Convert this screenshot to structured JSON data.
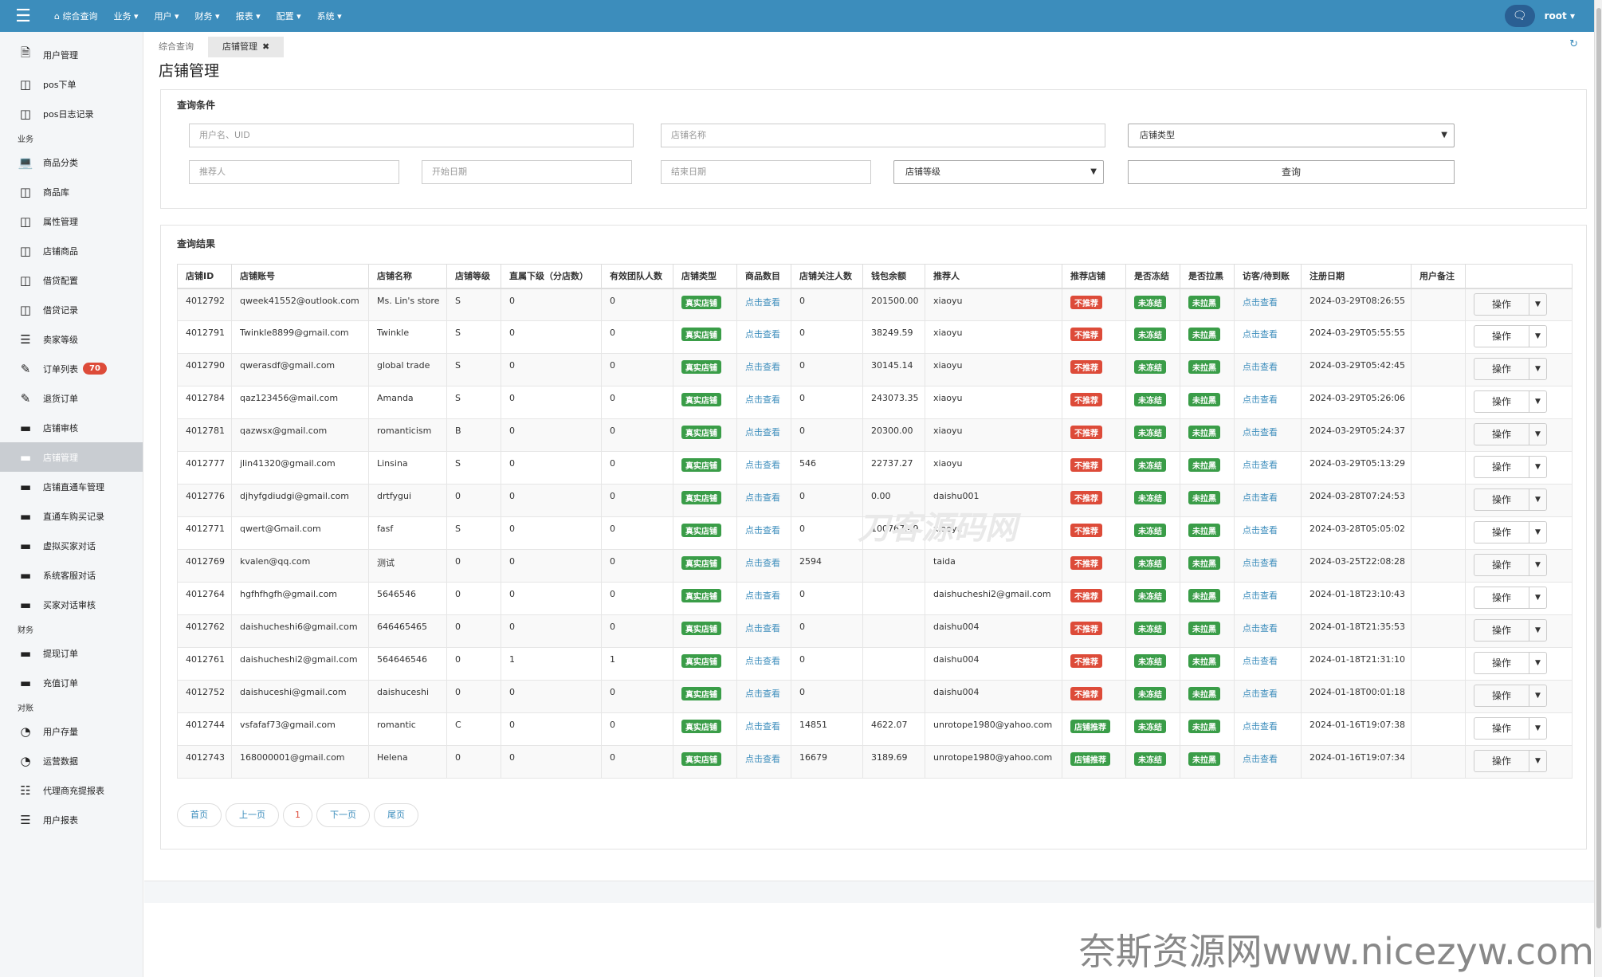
{
  "topbar": {
    "menu": [
      "综合查询",
      "业务",
      "用户",
      "财务",
      "报表",
      "配置",
      "系统"
    ],
    "user": "root"
  },
  "sidebar": {
    "items": [
      {
        "type": "item",
        "label": "用户管理",
        "icon": "file-icon"
      },
      {
        "type": "item",
        "label": "pos下单",
        "icon": "table-icon"
      },
      {
        "type": "item",
        "label": "pos日志记录",
        "icon": "table-icon"
      },
      {
        "type": "group",
        "label": "业务"
      },
      {
        "type": "item",
        "label": "商品分类",
        "icon": "laptop-icon"
      },
      {
        "type": "item",
        "label": "商品库",
        "icon": "table-icon"
      },
      {
        "type": "item",
        "label": "属性管理",
        "icon": "table-icon"
      },
      {
        "type": "item",
        "label": "店铺商品",
        "icon": "table-icon"
      },
      {
        "type": "item",
        "label": "借贷配置",
        "icon": "table-icon"
      },
      {
        "type": "item",
        "label": "借贷记录",
        "icon": "table-icon"
      },
      {
        "type": "item",
        "label": "卖家等级",
        "icon": "list-icon"
      },
      {
        "type": "item",
        "label": "订单列表",
        "icon": "pencil-icon",
        "badge": "70"
      },
      {
        "type": "item",
        "label": "退货订单",
        "icon": "pencil-icon"
      },
      {
        "type": "item",
        "label": "店铺审核",
        "icon": "card-icon"
      },
      {
        "type": "item",
        "label": "店铺管理",
        "icon": "card-icon",
        "active": true
      },
      {
        "type": "item",
        "label": "店铺直通车管理",
        "icon": "card-icon"
      },
      {
        "type": "item",
        "label": "直通车购买记录",
        "icon": "card-icon"
      },
      {
        "type": "item",
        "label": "虚拟买家对话",
        "icon": "card-icon"
      },
      {
        "type": "item",
        "label": "系统客服对话",
        "icon": "card-icon"
      },
      {
        "type": "item",
        "label": "买家对话审核",
        "icon": "card-icon"
      },
      {
        "type": "group",
        "label": "财务"
      },
      {
        "type": "item",
        "label": "提现订单",
        "icon": "card-icon"
      },
      {
        "type": "item",
        "label": "充值订单",
        "icon": "card-icon"
      },
      {
        "type": "group",
        "label": "对账"
      },
      {
        "type": "item",
        "label": "用户存量",
        "icon": "pie-icon"
      },
      {
        "type": "item",
        "label": "运营数据",
        "icon": "pie-icon"
      },
      {
        "type": "item",
        "label": "代理商充提报表",
        "icon": "sitemap-icon"
      },
      {
        "type": "item",
        "label": "用户报表",
        "icon": "list-icon"
      }
    ]
  },
  "tabs": [
    {
      "label": "综合查询",
      "active": false
    },
    {
      "label": "店铺管理",
      "active": true
    }
  ],
  "page_title": "店铺管理",
  "query": {
    "title": "查询条件",
    "username_placeholder": "用户名、UID",
    "shopname_placeholder": "店铺名称",
    "shoptype_select": "店铺类型",
    "referrer_placeholder": "推荐人",
    "start_placeholder": "开始日期",
    "end_placeholder": "结束日期",
    "level_select": "店铺等级",
    "search_button": "查询"
  },
  "results": {
    "title": "查询结果",
    "columns": [
      "店铺ID",
      "店铺账号",
      "店铺名称",
      "店铺等级",
      "直属下级（分店数）",
      "有效团队人数",
      "店铺类型",
      "商品数目",
      "店铺关注人数",
      "钱包余额",
      "推荐人",
      "推荐店铺",
      "是否冻结",
      "是否拉黑",
      "访客/待到账",
      "注册日期",
      "用户备注",
      ""
    ],
    "view_link": "点击查看",
    "op_label": "操作",
    "rows": [
      {
        "id": "4012792",
        "account": "qweek41552@outlook.com",
        "name": "Ms. Lin's store",
        "level": "S",
        "sub": "0",
        "team": "0",
        "type": "真实店铺",
        "follow": "0",
        "wallet": "201500.00",
        "ref": "xiaoyu",
        "rec": "不推荐",
        "frozen": "未冻结",
        "black": "未拉黑",
        "date": "2024-03-29T08:26:55"
      },
      {
        "id": "4012791",
        "account": "Twinkle8899@gmail.com",
        "name": "Twinkle",
        "level": "S",
        "sub": "0",
        "team": "0",
        "type": "真实店铺",
        "follow": "0",
        "wallet": "38249.59",
        "ref": "xiaoyu",
        "rec": "不推荐",
        "frozen": "未冻结",
        "black": "未拉黑",
        "date": "2024-03-29T05:55:55"
      },
      {
        "id": "4012790",
        "account": "qwerasdf@gmail.com",
        "name": "global trade",
        "level": "S",
        "sub": "0",
        "team": "0",
        "type": "真实店铺",
        "follow": "0",
        "wallet": "30145.14",
        "ref": "xiaoyu",
        "rec": "不推荐",
        "frozen": "未冻结",
        "black": "未拉黑",
        "date": "2024-03-29T05:42:45"
      },
      {
        "id": "4012784",
        "account": "qaz123456@mail.com",
        "name": "Amanda",
        "level": "S",
        "sub": "0",
        "team": "0",
        "type": "真实店铺",
        "follow": "0",
        "wallet": "243073.35",
        "ref": "xiaoyu",
        "rec": "不推荐",
        "frozen": "未冻结",
        "black": "未拉黑",
        "date": "2024-03-29T05:26:06"
      },
      {
        "id": "4012781",
        "account": "qazwsx@gmail.com",
        "name": "romanticism",
        "level": "B",
        "sub": "0",
        "team": "0",
        "type": "真实店铺",
        "follow": "0",
        "wallet": "20300.00",
        "ref": "xiaoyu",
        "rec": "不推荐",
        "frozen": "未冻结",
        "black": "未拉黑",
        "date": "2024-03-29T05:24:37"
      },
      {
        "id": "4012777",
        "account": "jlin41320@gmail.com",
        "name": "Linsina",
        "level": "S",
        "sub": "0",
        "team": "0",
        "type": "真实店铺",
        "follow": "546",
        "wallet": "22737.27",
        "ref": "xiaoyu",
        "rec": "不推荐",
        "frozen": "未冻结",
        "black": "未拉黑",
        "date": "2024-03-29T05:13:29"
      },
      {
        "id": "4012776",
        "account": "djhyfgdiudgi@gmail.com",
        "name": "drtfygui",
        "level": "0",
        "sub": "0",
        "team": "0",
        "type": "真实店铺",
        "follow": "0",
        "wallet": "0.00",
        "ref": "daishu001",
        "rec": "不推荐",
        "frozen": "未冻结",
        "black": "未拉黑",
        "date": "2024-03-28T07:24:53"
      },
      {
        "id": "4012771",
        "account": "qwert@Gmail.com",
        "name": "fasf",
        "level": "S",
        "sub": "0",
        "team": "0",
        "type": "真实店铺",
        "follow": "0",
        "wallet": "100767.49",
        "ref": "xiaoyu",
        "rec": "不推荐",
        "frozen": "未冻结",
        "black": "未拉黑",
        "date": "2024-03-28T05:05:02"
      },
      {
        "id": "4012769",
        "account": "kvalen@qq.com",
        "name": "测试",
        "level": "0",
        "sub": "0",
        "team": "0",
        "type": "真实店铺",
        "follow": "2594",
        "wallet": "",
        "ref": "taida",
        "rec": "不推荐",
        "frozen": "未冻结",
        "black": "未拉黑",
        "date": "2024-03-25T22:08:28"
      },
      {
        "id": "4012764",
        "account": "hgfhfhgfh@gmail.com",
        "name": "5646546",
        "level": "0",
        "sub": "0",
        "team": "0",
        "type": "真实店铺",
        "follow": "0",
        "wallet": "",
        "ref": "daishucheshi2@gmail.com",
        "rec": "不推荐",
        "frozen": "未冻结",
        "black": "未拉黑",
        "date": "2024-01-18T23:10:43"
      },
      {
        "id": "4012762",
        "account": "daishucheshi6@gmail.com",
        "name": "646465465",
        "level": "0",
        "sub": "0",
        "team": "0",
        "type": "真实店铺",
        "follow": "0",
        "wallet": "",
        "ref": "daishu004",
        "rec": "不推荐",
        "frozen": "未冻结",
        "black": "未拉黑",
        "date": "2024-01-18T21:35:53"
      },
      {
        "id": "4012761",
        "account": "daishucheshi2@gmail.com",
        "name": "564646546",
        "level": "0",
        "sub": "1",
        "team": "1",
        "type": "真实店铺",
        "follow": "0",
        "wallet": "",
        "ref": "daishu004",
        "rec": "不推荐",
        "frozen": "未冻结",
        "black": "未拉黑",
        "date": "2024-01-18T21:31:10"
      },
      {
        "id": "4012752",
        "account": "daishuceshi@gmail.com",
        "name": "daishuceshi",
        "level": "0",
        "sub": "0",
        "team": "0",
        "type": "真实店铺",
        "follow": "0",
        "wallet": "",
        "ref": "daishu004",
        "rec": "不推荐",
        "frozen": "未冻结",
        "black": "未拉黑",
        "date": "2024-01-18T00:01:18"
      },
      {
        "id": "4012744",
        "account": "vsfafaf73@gmail.com",
        "name": "romantic",
        "level": "C",
        "sub": "0",
        "team": "0",
        "type": "真实店铺",
        "follow": "14851",
        "wallet": "4622.07",
        "ref": "unrotope1980@yahoo.com",
        "rec": "店铺推荐",
        "frozen": "未冻结",
        "black": "未拉黑",
        "date": "2024-01-16T19:07:38"
      },
      {
        "id": "4012743",
        "account": "168000001@gmail.com",
        "name": "Helena",
        "level": "0",
        "sub": "0",
        "team": "0",
        "type": "真实店铺",
        "follow": "16679",
        "wallet": "3189.69",
        "ref": "unrotope1980@yahoo.com",
        "rec": "店铺推荐",
        "frozen": "未冻结",
        "black": "未拉黑",
        "date": "2024-01-16T19:07:34"
      }
    ]
  },
  "pager": {
    "first": "首页",
    "prev": "上一页",
    "current": "1",
    "next": "下一页",
    "last": "尾页"
  },
  "watermark": "奈斯资源网www.nicezyw.com",
  "center_watermark": "刀客源码网",
  "colors": {
    "topbar": "#3c8dbc",
    "green": "#3a9d48",
    "red": "#dd4b39",
    "link": "#3c8dbc"
  }
}
